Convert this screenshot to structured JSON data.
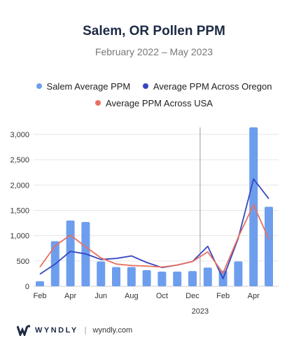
{
  "title": "Salem, OR Pollen PPM",
  "subtitle": "February 2022 – May 2023",
  "footer": {
    "brand": "WYNDLY",
    "separator": "|",
    "url": "wyndly.com",
    "logo_icon": "wyndly-w-logo"
  },
  "colors": {
    "bar": "#6d9eee",
    "oregon_line": "#3646c0",
    "usa_line": "#e87061",
    "title": "#1c2a44",
    "grid": "#e6e6e6"
  },
  "chart_data": {
    "type": "bar",
    "title": "Salem, OR Pollen PPM",
    "subtitle": "February 2022 – May 2023",
    "categories": [
      "Feb 2022",
      "Mar 2022",
      "Apr 2022",
      "May 2022",
      "Jun 2022",
      "Jul 2022",
      "Aug 2022",
      "Sep 2022",
      "Oct 2022",
      "Nov 2022",
      "Dec 2022",
      "Jan 2023",
      "Feb 2023",
      "Mar 2023",
      "Apr 2023",
      "May 2023"
    ],
    "x_tick_labels": [
      "Feb",
      "",
      "Apr",
      "",
      "Jun",
      "",
      "Aug",
      "",
      "Oct",
      "",
      "Dec",
      "",
      "Feb",
      "",
      "Apr",
      ""
    ],
    "year_marker": {
      "label": "2023",
      "between_index": [
        10,
        11
      ]
    },
    "series": [
      {
        "name": "Salem Average PPM",
        "type": "bar",
        "color": "#6d9eee",
        "values": [
          100,
          890,
          1300,
          1270,
          490,
          380,
          380,
          320,
          290,
          290,
          300,
          370,
          310,
          490,
          3140,
          1570
        ]
      },
      {
        "name": "Average PPM Across Oregon",
        "type": "line",
        "color": "#3646c0",
        "values": [
          240,
          440,
          690,
          640,
          530,
          550,
          600,
          470,
          370,
          420,
          490,
          790,
          150,
          950,
          2120,
          1730
        ]
      },
      {
        "name": "Average PPM Across USA",
        "type": "line",
        "color": "#e87061",
        "values": [
          380,
          800,
          1010,
          780,
          560,
          440,
          410,
          400,
          380,
          420,
          490,
          680,
          260,
          970,
          1610,
          930
        ]
      }
    ],
    "y_ticks": [
      0,
      500,
      1000,
      1500,
      2000,
      2500,
      3000
    ],
    "y_tick_labels": [
      "0",
      "500",
      "1,000",
      "1,500",
      "2,000",
      "2,500",
      "3,000"
    ],
    "ylim": [
      0,
      3000
    ],
    "xlabel": "",
    "ylabel": "",
    "grid": true,
    "legend_position": "top"
  }
}
